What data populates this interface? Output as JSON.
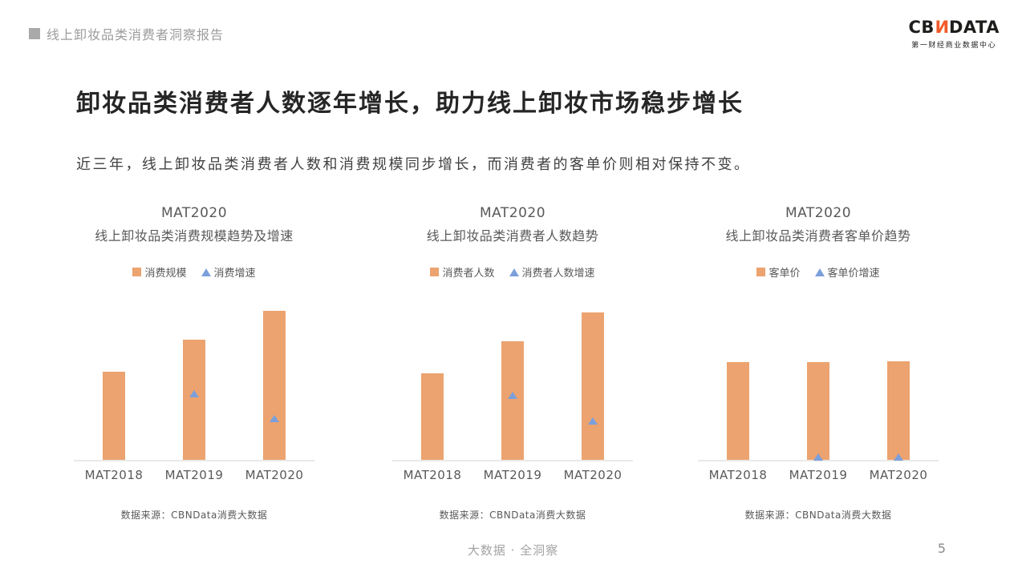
{
  "colors": {
    "bar": "#eca36f",
    "marker": "#7b9fdb",
    "logo_accent": "#f15a29",
    "axis": "#e9e9e9"
  },
  "header": {
    "report_title": "线上卸妆品类消费者洞察报告",
    "logo_cb": "CB",
    "logo_n": "N",
    "logo_data": "DATA",
    "logo_subtitle": "第一财经商业数据中心"
  },
  "main": {
    "title": "卸妆品类消费者人数逐年增长，助力线上卸妆市场稳步增长",
    "description": "近三年，线上卸妆品类消费者人数和消费规模同步增长，而消费者的客单价则相对保持不变。"
  },
  "chart_data": [
    {
      "type": "bar",
      "title": "MAT2020",
      "subtitle": "线上卸妆品类消费规模趋势及增速",
      "categories": [
        "MAT2018",
        "MAT2019",
        "MAT2020"
      ],
      "legend": [
        "消费规模",
        "消费增速"
      ],
      "series": [
        {
          "name": "消费规模",
          "type": "bar",
          "relative_values": [
            1.0,
            1.37,
            1.69
          ]
        },
        {
          "name": "消费增速",
          "type": "point",
          "note": "markers on 2019 and 2020 bars, growth rate declining"
        }
      ],
      "bar_heights_frac": [
        0.58,
        0.79,
        0.98
      ],
      "marker_heights_frac": [
        null,
        0.43,
        0.27
      ],
      "legend_position": "top",
      "value_labels_shown": false,
      "source": "数据来源：CBNData消费大数据"
    },
    {
      "type": "bar",
      "title": "MAT2020",
      "subtitle": "线上卸妆品类消费者人数趋势",
      "categories": [
        "MAT2018",
        "MAT2019",
        "MAT2020"
      ],
      "legend": [
        "消费者人数",
        "消费者人数增速"
      ],
      "series": [
        {
          "name": "消费者人数",
          "type": "bar",
          "relative_values": [
            1.0,
            1.38,
            1.7
          ]
        },
        {
          "name": "消费者人数增速",
          "type": "point",
          "note": "markers on 2019 and 2020 bars, growth rate declining"
        }
      ],
      "bar_heights_frac": [
        0.57,
        0.78,
        0.97
      ],
      "marker_heights_frac": [
        null,
        0.42,
        0.25
      ],
      "legend_position": "top",
      "value_labels_shown": false,
      "source": "数据来源：CBNData消费大数据"
    },
    {
      "type": "bar",
      "title": "MAT2020",
      "subtitle": "线上卸妆品类消费者客单价趋势",
      "categories": [
        "MAT2018",
        "MAT2019",
        "MAT2020"
      ],
      "legend": [
        "客单价",
        "客单价增速"
      ],
      "series": [
        {
          "name": "客单价",
          "type": "bar",
          "relative_values": [
            1.0,
            1.0,
            1.01
          ]
        },
        {
          "name": "客单价增速",
          "type": "point",
          "note": "markers on 2019 and 2020 sit at the axis line, growth near zero"
        }
      ],
      "bar_heights_frac": [
        0.64,
        0.64,
        0.645
      ],
      "marker_heights_frac": [
        null,
        0.015,
        0.015
      ],
      "legend_position": "top",
      "value_labels_shown": false,
      "source": "数据来源：CBNData消费大数据"
    }
  ],
  "footer": {
    "slogan": "大数据 · 全洞察",
    "page_number": "5"
  }
}
